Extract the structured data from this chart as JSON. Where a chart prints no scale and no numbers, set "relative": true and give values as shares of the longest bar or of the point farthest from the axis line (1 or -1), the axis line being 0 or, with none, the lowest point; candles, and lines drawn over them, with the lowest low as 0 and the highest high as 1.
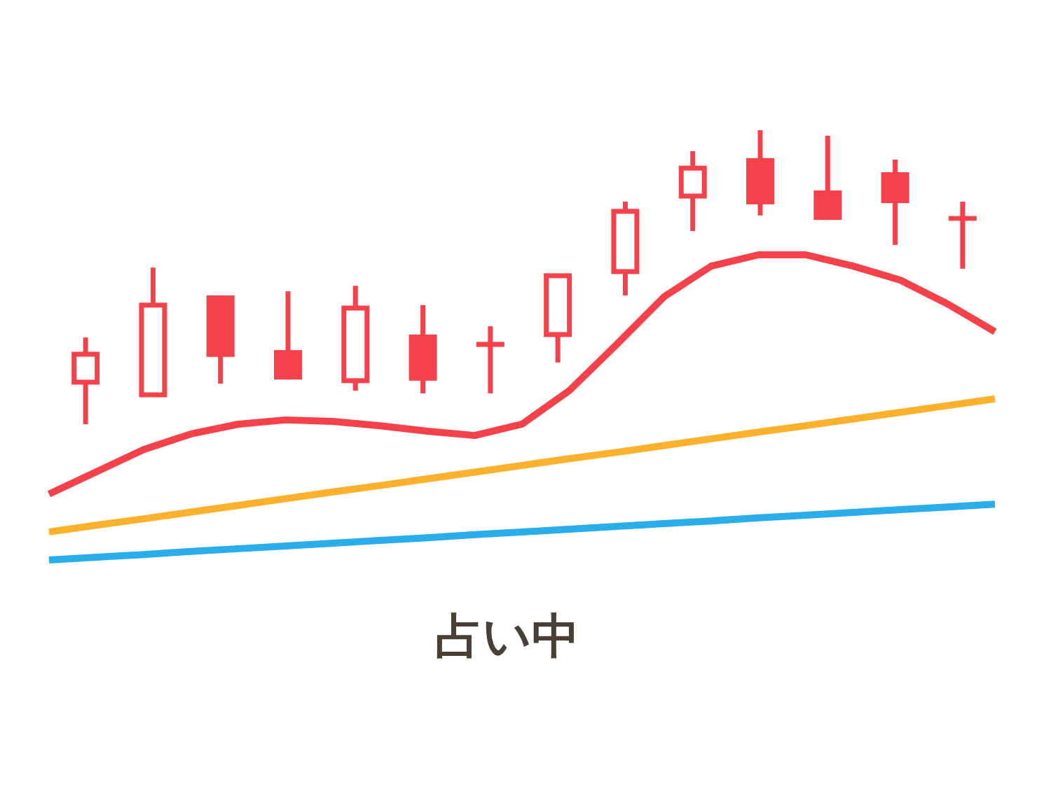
{
  "chart_data": [
    {
      "type": "candlestick",
      "title": "占い中",
      "relative": true,
      "color": "#f5414a",
      "categories": [
        null,
        null,
        null,
        null,
        null,
        null,
        null,
        null,
        null,
        null,
        null,
        null,
        null,
        null
      ],
      "ohlc": [
        [
          0.143,
          0.295,
          0,
          0.238
        ],
        [
          0.1,
          0.533,
          0.1,
          0.405
        ],
        [
          0.438,
          0.438,
          0.138,
          0.229
        ],
        [
          0.252,
          0.452,
          0.152,
          0.152
        ],
        [
          0.148,
          0.471,
          0.114,
          0.395
        ],
        [
          0.305,
          0.405,
          0.105,
          0.148
        ],
        [
          0.28,
          0.333,
          0.105,
          0.263
        ],
        [
          0.305,
          0.505,
          0.21,
          0.505
        ],
        [
          0.519,
          0.757,
          0.438,
          0.724
        ],
        [
          0.776,
          0.929,
          0.657,
          0.871
        ],
        [
          0.905,
          1,
          0.71,
          0.748
        ],
        [
          0.795,
          0.981,
          0.695,
          0.695
        ],
        [
          0.857,
          0.9,
          0.61,
          0.752
        ],
        [
          0.708,
          0.757,
          0.529,
          0.692
        ]
      ]
    },
    {
      "type": "line",
      "relative": true,
      "categories": [
        null,
        null,
        null,
        null,
        null,
        null,
        null,
        null,
        null,
        null,
        null,
        null,
        null,
        null,
        null,
        null,
        null,
        null,
        null,
        null,
        null
      ],
      "series": [
        {
          "color": "#2aaee9",
          "values": [
            0,
            0.009,
            0.018,
            0.028,
            0.037,
            0.046,
            0.055,
            0.064,
            0.073,
            0.083,
            0.092,
            0.101,
            0.11,
            0.119,
            0.128,
            0.138,
            0.147,
            0.156,
            0.165,
            0.174,
            0.183
          ]
        },
        {
          "color": "#fbb12c",
          "values": [
            0.092,
            0.114,
            0.135,
            0.157,
            0.179,
            0.201,
            0.223,
            0.244,
            0.266,
            0.288,
            0.31,
            0.332,
            0.353,
            0.375,
            0.397,
            0.419,
            0.44,
            0.462,
            0.484,
            0.506,
            0.528
          ]
        },
        {
          "color": "#f5414a",
          "values": [
            0.216,
            0.289,
            0.362,
            0.413,
            0.445,
            0.459,
            0.454,
            0.44,
            0.422,
            0.408,
            0.445,
            0.555,
            0.706,
            0.862,
            0.963,
            1,
            1,
            0.963,
            0.917,
            0.839,
            0.748
          ]
        }
      ]
    }
  ]
}
